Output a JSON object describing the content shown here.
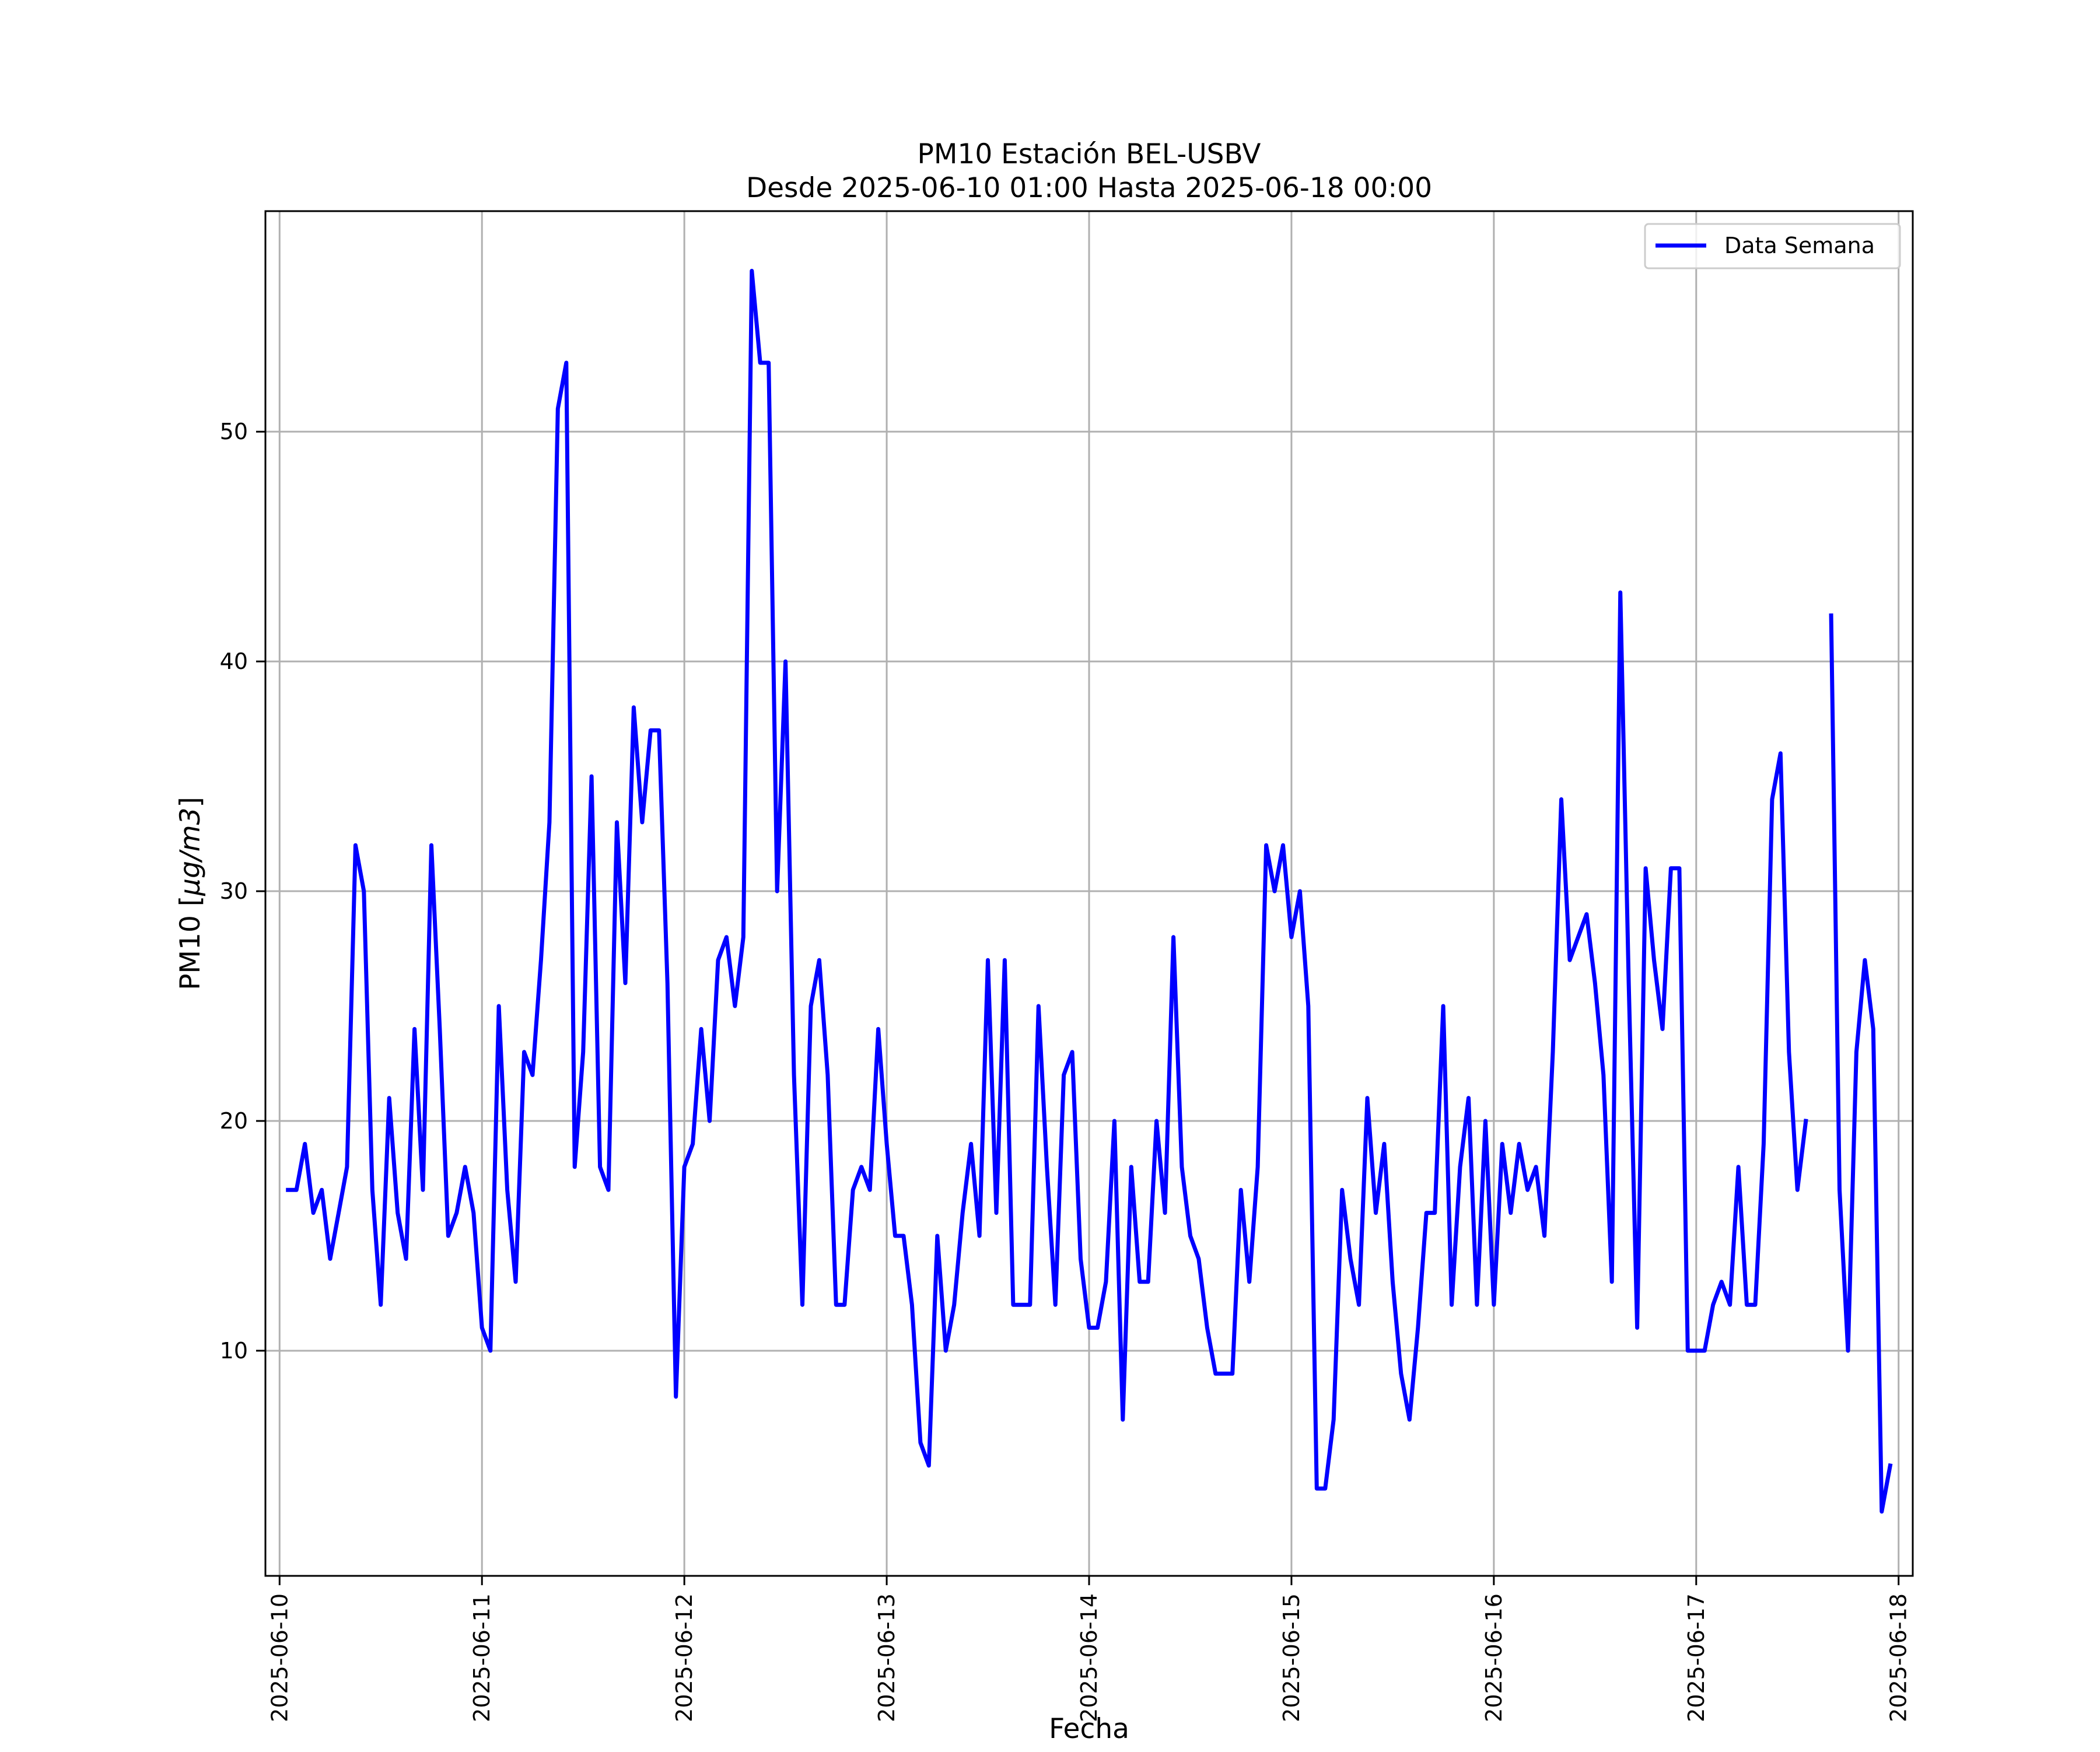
{
  "chart_data": {
    "type": "line",
    "title": "PM10 Estación BEL-USBV",
    "subtitle": "Desde 2025-06-10 01:00 Hasta 2025-06-18 00:00",
    "xlabel": "Fecha",
    "ylabel_main": "PM10 [",
    "ylabel_unit": "μg/m3",
    "ylabel_close": "]",
    "x_ticks": [
      "2025-06-10",
      "2025-06-11",
      "2025-06-12",
      "2025-06-13",
      "2025-06-14",
      "2025-06-15",
      "2025-06-16",
      "2025-06-17",
      "2025-06-18"
    ],
    "y_ticks": [
      10,
      20,
      30,
      40,
      50
    ],
    "xlim": [
      -0.07,
      8.07
    ],
    "ylim": [
      0.2,
      59.6
    ],
    "grid": true,
    "legend_position": "top-right",
    "color": "#0000ff",
    "series": [
      {
        "name": "Data Semana",
        "x_start": "2025-06-10 01:00",
        "interval_hours": 1,
        "values": [
          17,
          17,
          19,
          16,
          17,
          14,
          16,
          18,
          32,
          30,
          17,
          12,
          21,
          16,
          14,
          24,
          17,
          32,
          24,
          15,
          16,
          18,
          16,
          11,
          10,
          25,
          17,
          13,
          23,
          22,
          27,
          33,
          51,
          53,
          18,
          23,
          35,
          18,
          17,
          33,
          26,
          38,
          33,
          37,
          37,
          26,
          8,
          18,
          19,
          24,
          20,
          27,
          28,
          25,
          28,
          57,
          53,
          53,
          30,
          40,
          22,
          12,
          25,
          27,
          22,
          12,
          12,
          17,
          18,
          17,
          24,
          19,
          15,
          15,
          12,
          6,
          5,
          15,
          10,
          12,
          16,
          19,
          15,
          27,
          16,
          27,
          12,
          12,
          12,
          25,
          18,
          12,
          22,
          23,
          14,
          11,
          11,
          13,
          20,
          7,
          18,
          13,
          13,
          20,
          16,
          28,
          18,
          15,
          14,
          11,
          9,
          9,
          9,
          17,
          13,
          18,
          32,
          30,
          32,
          28,
          30,
          25,
          4,
          4,
          7,
          17,
          14,
          12,
          21,
          16,
          19,
          13,
          9,
          7,
          11,
          16,
          16,
          25,
          12,
          18,
          21,
          12,
          20,
          12,
          19,
          16,
          19,
          17,
          18,
          15,
          23,
          34,
          27,
          28,
          29,
          26,
          22,
          13,
          43,
          26,
          11,
          31,
          27,
          24,
          31,
          31,
          10,
          10,
          10,
          12,
          13,
          12,
          18,
          12,
          12,
          19,
          34,
          36,
          23,
          17,
          20,
          null,
          null,
          42,
          17,
          10,
          23,
          27,
          24,
          3,
          5
        ]
      }
    ]
  }
}
